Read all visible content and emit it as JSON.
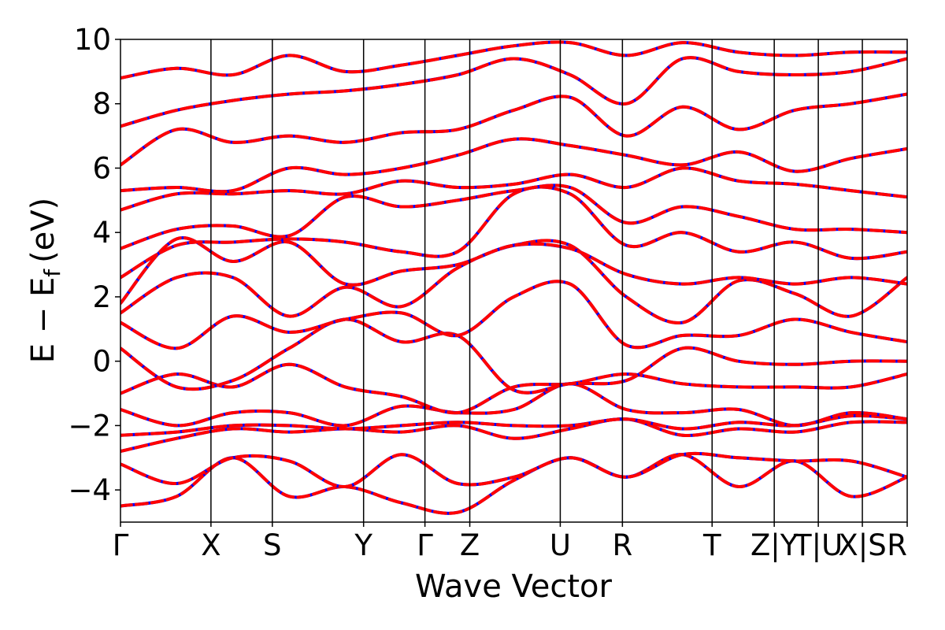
{
  "chart_data": {
    "type": "line",
    "title": "",
    "xlabel": "Wave Vector",
    "ylabel_main": "E − E",
    "ylabel_sub": "f",
    "ylabel_unit": "(eV)",
    "ylim": [
      -5,
      10
    ],
    "yticks": [
      -4,
      -2,
      0,
      2,
      4,
      6,
      8,
      10
    ],
    "grid": false,
    "legend": "none",
    "kpath": [
      {
        "label": "Γ",
        "k": 0.0
      },
      {
        "label": "X",
        "k": 0.115
      },
      {
        "label": "S",
        "k": 0.193
      },
      {
        "label": "Y",
        "k": 0.309
      },
      {
        "label": "Γ",
        "k": 0.387
      },
      {
        "label": "Z",
        "k": 0.444
      },
      {
        "label": "U",
        "k": 0.559
      },
      {
        "label": "R",
        "k": 0.638
      },
      {
        "label": "T",
        "k": 0.752
      },
      {
        "label": "Z|Y",
        "k": 0.831
      },
      {
        "label": "T|U",
        "k": 0.887
      },
      {
        "label": "X|S",
        "k": 0.943
      },
      {
        "label": "R",
        "k": 1.0
      }
    ],
    "series_style": [
      {
        "color": "#0000ff",
        "dash": "none"
      },
      {
        "color": "#ff0000",
        "dash": "dashed"
      }
    ],
    "bands": [
      [
        -4.5,
        -4.2,
        -3.0,
        -4.2,
        -3.9,
        -4.4,
        -4.7,
        -3.7,
        -3.0,
        -3.6,
        -2.9,
        -3.9,
        -3.1,
        -4.2,
        -3.6
      ],
      [
        -3.2,
        -3.8,
        -3.0,
        -3.1,
        -3.9,
        -2.9,
        -3.8,
        -3.6,
        -3.0,
        -3.6,
        -2.9,
        -3.0,
        -3.1,
        -3.1,
        -3.6
      ],
      [
        -2.8,
        -2.4,
        -2.1,
        -2.2,
        -2.1,
        -2.2,
        -2.0,
        -2.4,
        -2.1,
        -1.8,
        -2.3,
        -2.1,
        -2.2,
        -1.9,
        -1.9
      ],
      [
        -2.3,
        -2.2,
        -2.0,
        -2.0,
        -2.1,
        -2.0,
        -1.9,
        -2.0,
        -2.0,
        -1.8,
        -2.1,
        -1.9,
        -2.0,
        -1.7,
        -1.8
      ],
      [
        -1.5,
        -2.0,
        -1.6,
        -1.6,
        -2.0,
        -1.4,
        -1.6,
        -1.5,
        -0.7,
        -1.5,
        -1.6,
        -1.5,
        -2.0,
        -1.6,
        -1.8
      ],
      [
        -1.0,
        -0.4,
        -0.8,
        -0.1,
        -0.8,
        -1.1,
        -1.6,
        -0.8,
        -0.7,
        -0.4,
        -0.7,
        -0.8,
        -0.8,
        -0.8,
        -0.4
      ],
      [
        0.4,
        -0.8,
        -0.6,
        0.4,
        1.3,
        0.6,
        0.8,
        -0.9,
        -0.7,
        -0.6,
        0.4,
        0.0,
        -0.1,
        0.0,
        0.0
      ],
      [
        1.2,
        0.4,
        1.4,
        0.9,
        1.3,
        1.5,
        0.8,
        2.0,
        2.4,
        0.5,
        0.8,
        0.8,
        1.3,
        0.9,
        0.6
      ],
      [
        1.5,
        2.6,
        2.6,
        1.4,
        2.3,
        1.7,
        2.9,
        3.6,
        3.6,
        2.0,
        1.2,
        2.5,
        2.1,
        1.4,
        2.6
      ],
      [
        1.8,
        3.8,
        3.1,
        3.7,
        2.4,
        2.8,
        3.0,
        3.6,
        3.5,
        2.7,
        2.4,
        2.6,
        2.4,
        2.6,
        2.4
      ],
      [
        2.6,
        3.6,
        3.7,
        3.8,
        3.7,
        3.4,
        3.4,
        5.2,
        5.2,
        3.6,
        4.0,
        3.4,
        3.7,
        3.2,
        3.4
      ],
      [
        3.5,
        4.1,
        4.2,
        3.9,
        5.1,
        4.8,
        5.0,
        5.3,
        5.4,
        4.3,
        4.8,
        4.5,
        4.1,
        4.1,
        4.0
      ],
      [
        4.7,
        5.2,
        5.2,
        5.3,
        5.2,
        5.6,
        5.4,
        5.5,
        5.8,
        5.4,
        6.0,
        5.6,
        5.5,
        5.3,
        5.1
      ],
      [
        5.3,
        5.4,
        5.3,
        6.0,
        5.8,
        6.0,
        6.4,
        6.9,
        6.7,
        6.4,
        6.1,
        6.5,
        5.9,
        6.3,
        6.6
      ],
      [
        6.1,
        7.2,
        6.8,
        7.0,
        6.8,
        7.1,
        7.2,
        7.8,
        8.2,
        7.0,
        7.9,
        7.2,
        7.8,
        8.0,
        8.3
      ],
      [
        7.3,
        7.8,
        8.1,
        8.3,
        8.4,
        8.6,
        8.9,
        9.4,
        8.9,
        8.0,
        9.4,
        9.0,
        8.9,
        9.0,
        9.4
      ],
      [
        8.8,
        9.1,
        8.9,
        9.5,
        9.0,
        9.2,
        9.5,
        9.8,
        9.9,
        9.5,
        9.9,
        9.6,
        9.5,
        9.6,
        9.6
      ]
    ]
  }
}
